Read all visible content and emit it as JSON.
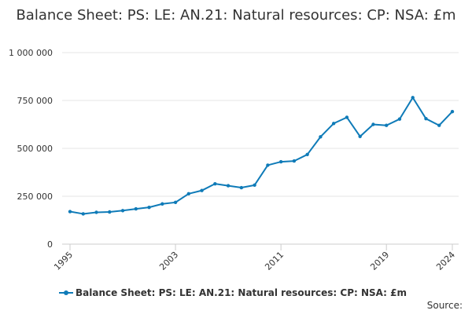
{
  "chart_data": {
    "type": "line",
    "title": "Balance Sheet: PS: LE: AN.21: Natural resources: CP: NSA: £m",
    "xlabel": "",
    "ylabel": "",
    "x": [
      1995,
      1996,
      1997,
      1998,
      1999,
      2000,
      2001,
      2002,
      2003,
      2004,
      2005,
      2006,
      2007,
      2008,
      2009,
      2010,
      2011,
      2012,
      2013,
      2014,
      2015,
      2016,
      2017,
      2018,
      2019,
      2020,
      2021,
      2022,
      2023,
      2024
    ],
    "series": [
      {
        "name": "Balance Sheet: PS: LE: AN.21: Natural resources: CP: NSA: £m",
        "color": "#0f7bb8",
        "values": [
          170000,
          158000,
          166000,
          168000,
          175000,
          184000,
          192000,
          210000,
          218000,
          263000,
          280000,
          315000,
          305000,
          295000,
          308000,
          412000,
          430000,
          434000,
          468000,
          560000,
          630000,
          662000,
          562000,
          625000,
          620000,
          653000,
          765000,
          655000,
          620000,
          692000
        ]
      }
    ],
    "ylim": [
      0,
      1000000
    ],
    "yticks": [
      0,
      250000,
      500000,
      750000,
      1000000
    ],
    "ytick_labels": [
      "0",
      "250 000",
      "500 000",
      "750 000",
      "1 000 000"
    ],
    "xlim": [
      1995,
      2024
    ],
    "xticks": [
      1995,
      2003,
      2011,
      2019,
      2024
    ],
    "xtick_labels": [
      "1995",
      "2003",
      "2011",
      "2019",
      "2024"
    ],
    "grid": true,
    "legend_position": "bottom-left"
  },
  "source_label": "Source:"
}
